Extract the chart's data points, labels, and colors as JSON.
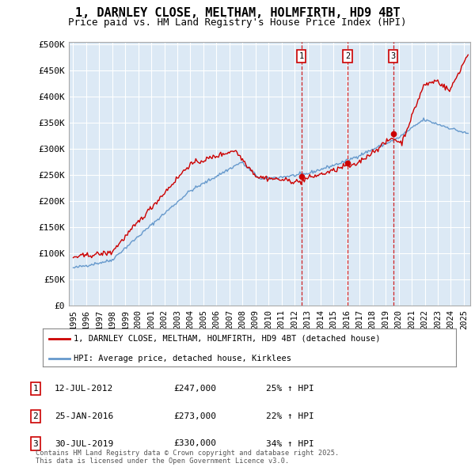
{
  "title": "1, DARNLEY CLOSE, MELTHAM, HOLMFIRTH, HD9 4BT",
  "subtitle": "Price paid vs. HM Land Registry's House Price Index (HPI)",
  "plot_bg_color": "#dce9f5",
  "yticks": [
    0,
    50000,
    100000,
    150000,
    200000,
    250000,
    300000,
    350000,
    400000,
    450000,
    500000
  ],
  "ytick_labels": [
    "£0",
    "£50K",
    "£100K",
    "£150K",
    "£200K",
    "£250K",
    "£300K",
    "£350K",
    "£400K",
    "£450K",
    "£500K"
  ],
  "sale_dates": [
    "2012-07-12",
    "2016-01-25",
    "2019-07-30"
  ],
  "sale_prices": [
    247000,
    273000,
    330000
  ],
  "sale_labels": [
    "1",
    "2",
    "3"
  ],
  "legend_entries": [
    "1, DARNLEY CLOSE, MELTHAM, HOLMFIRTH, HD9 4BT (detached house)",
    "HPI: Average price, detached house, Kirklees"
  ],
  "table_rows": [
    {
      "label": "1",
      "date": "12-JUL-2012",
      "price": "£247,000",
      "pct": "25% ↑ HPI"
    },
    {
      "label": "2",
      "date": "25-JAN-2016",
      "price": "£273,000",
      "pct": "22% ↑ HPI"
    },
    {
      "label": "3",
      "date": "30-JUL-2019",
      "price": "£330,000",
      "pct": "34% ↑ HPI"
    }
  ],
  "footer": "Contains HM Land Registry data © Crown copyright and database right 2025.\nThis data is licensed under the Open Government Licence v3.0.",
  "red_color": "#cc0000",
  "blue_color": "#6699cc",
  "x_start_year": 1995,
  "x_end_year": 2025
}
